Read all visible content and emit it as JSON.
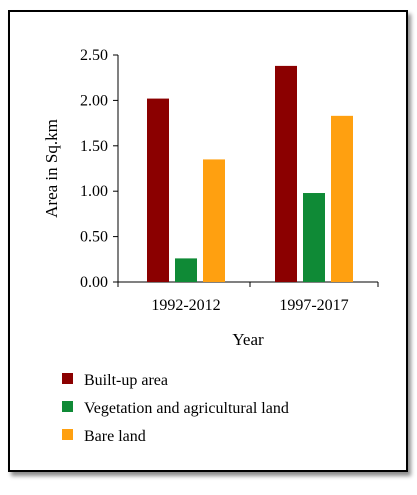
{
  "chart_data": {
    "type": "bar",
    "title": "",
    "xlabel": "Year",
    "ylabel": "Area in Sq.km",
    "categories": [
      "1992-2012",
      "1997-2017"
    ],
    "series": [
      {
        "name": "Built-up area",
        "color": "#8b0000",
        "values": [
          2.02,
          2.38
        ]
      },
      {
        "name": "Vegetation and agricultural land",
        "color": "#0f8a36",
        "values": [
          0.26,
          0.98
        ]
      },
      {
        "name": "Bare land",
        "color": "#ffa010",
        "values": [
          1.35,
          1.83
        ]
      }
    ],
    "ylim": [
      0,
      2.5
    ],
    "yticks": [
      "0.00",
      "0.50",
      "1.00",
      "1.50",
      "2.00",
      "2.50"
    ],
    "grid": false,
    "legend_position": "bottom"
  }
}
